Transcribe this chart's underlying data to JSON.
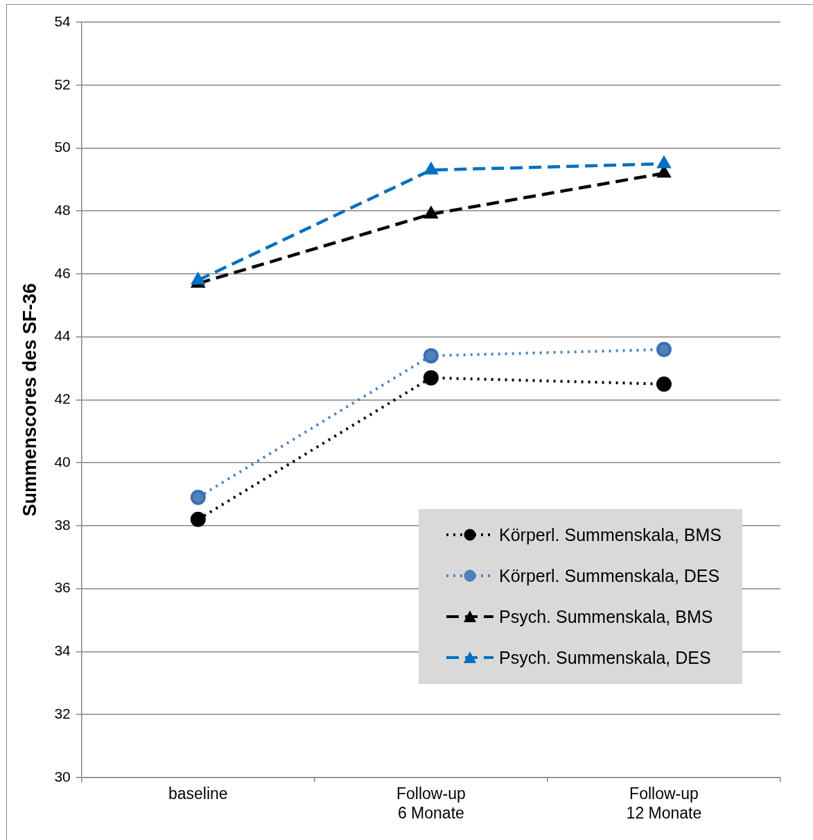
{
  "chart_data": {
    "type": "line",
    "ylabel": "Summenscores des SF-36",
    "categories": [
      "baseline",
      "Follow-up\n6 Monate",
      "Follow-up\n12 Monate"
    ],
    "ylim": [
      30,
      54
    ],
    "yticks": [
      30,
      32,
      34,
      36,
      38,
      40,
      42,
      44,
      46,
      48,
      50,
      52,
      54
    ],
    "grid": "y",
    "legend": "bottom right",
    "series": [
      {
        "name": "Körperl. Summenskala, BMS",
        "color": "#000000",
        "values": [
          38.2,
          42.7,
          42.5
        ],
        "marker": "circle",
        "line_style": "dotted"
      },
      {
        "name": "Körperl. Summenskala, DES",
        "color": "#4f81bd",
        "values": [
          38.9,
          43.4,
          43.6
        ],
        "marker": "circle",
        "line_style": "dotted"
      },
      {
        "name": "Psych. Summenskala, BMS",
        "color": "#000000",
        "values": [
          45.7,
          47.9,
          49.2
        ],
        "marker": "triangle",
        "line_style": "dashed"
      },
      {
        "name": "Psych. Summenskala, DES",
        "color": "#0070c0",
        "values": [
          45.8,
          49.3,
          49.5
        ],
        "marker": "triangle",
        "line_style": "dashed"
      }
    ]
  }
}
